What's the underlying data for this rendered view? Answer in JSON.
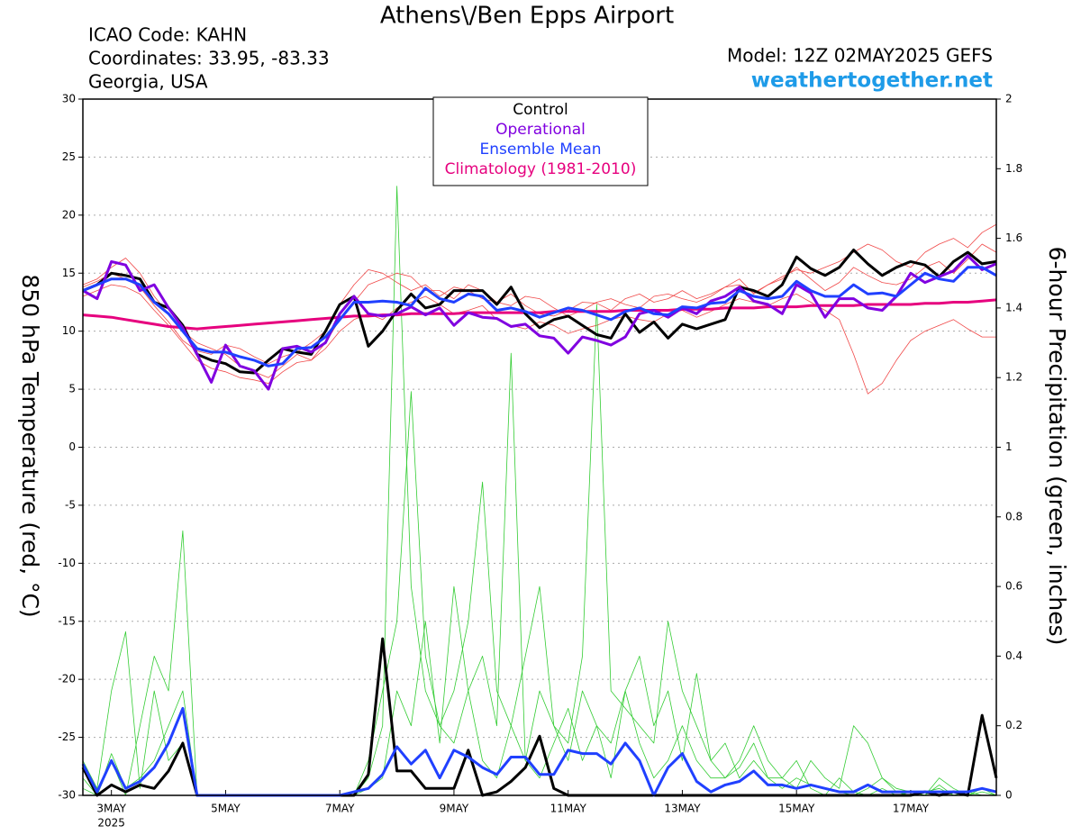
{
  "chart_data": {
    "type": "line",
    "title": "Athens\\/Ben Epps Airport",
    "info": [
      "ICAO Code: KAHN",
      "Coordinates: 33.95, -83.33",
      "Georgia, USA"
    ],
    "model": "Model: 12Z 02MAY2025 GEFS",
    "site": "weathertogether.net",
    "y_label": "850 hPa Temperature (red, °C)",
    "y2_label": "6-hour Precipitation (green, inches)",
    "x_year_label": "2025",
    "xlim": [
      2.5,
      18.5
    ],
    "xticks": [
      {
        "value": 3,
        "label": "3MAY"
      },
      {
        "value": 5,
        "label": "5MAY"
      },
      {
        "value": 7,
        "label": "7MAY"
      },
      {
        "value": 9,
        "label": "9MAY"
      },
      {
        "value": 11,
        "label": "11MAY"
      },
      {
        "value": 13,
        "label": "13MAY"
      },
      {
        "value": 15,
        "label": "15MAY"
      },
      {
        "value": 17,
        "label": "17MAY"
      }
    ],
    "ylim": [
      -30,
      30
    ],
    "yticks": [
      -30,
      -25,
      -20,
      -15,
      -10,
      -5,
      0,
      5,
      10,
      15,
      20,
      25,
      30
    ],
    "y2lim": [
      0,
      2
    ],
    "y2ticks": [
      0,
      0.2,
      0.4,
      0.6,
      0.8,
      1,
      1.2,
      1.4,
      1.6,
      1.8,
      2
    ],
    "grid": true,
    "x": [
      2.5,
      2.75,
      3,
      3.25,
      3.5,
      3.75,
      4,
      4.25,
      4.5,
      4.75,
      5,
      5.25,
      5.5,
      5.75,
      6,
      6.25,
      6.5,
      6.75,
      7,
      7.25,
      7.5,
      7.75,
      8,
      8.25,
      8.5,
      8.75,
      9,
      9.25,
      9.5,
      9.75,
      10,
      10.25,
      10.5,
      10.75,
      11,
      11.25,
      11.5,
      11.75,
      12,
      12.25,
      12.5,
      12.75,
      13,
      13.25,
      13.5,
      13.75,
      14,
      14.25,
      14.5,
      14.75,
      15,
      15.25,
      15.5,
      15.75,
      16,
      16.25,
      16.5,
      16.75,
      17,
      17.25,
      17.5,
      17.75,
      18,
      18.25,
      18.5
    ],
    "series": [
      {
        "color": "#f04848",
        "width": 0.8,
        "values": [
          14,
          14.5,
          15.5,
          16.3,
          15,
          13,
          11.5,
          10,
          9,
          8.5,
          8,
          7,
          6.5,
          6,
          7,
          8,
          7.5,
          9,
          11,
          12.5,
          14,
          14.5,
          15,
          14.7,
          13.5,
          13.5,
          12.8,
          14,
          13.5,
          12.5,
          12.2,
          13,
          12.8,
          12,
          11.3,
          11.8,
          12.5,
          12.8,
          12.3,
          12,
          13,
          13.2,
          12.8,
          12.5,
          13,
          13.8,
          14,
          13.3,
          14,
          14.7,
          15.3,
          15,
          15.5,
          16,
          16.8,
          17.5,
          17,
          16,
          15.5,
          16.8,
          17.5,
          18,
          17.2,
          18.5,
          19.2
        ]
      },
      {
        "color": "#f04848",
        "width": 0.8,
        "values": [
          13,
          13.5,
          14,
          13.8,
          13.2,
          11.8,
          10.5,
          9,
          7.5,
          6.8,
          6.5,
          6,
          5.8,
          5.5,
          6.5,
          7.3,
          7.5,
          8.5,
          10,
          11,
          11.5,
          11,
          12,
          12.5,
          13,
          12.3,
          11.5,
          11.8,
          12.2,
          11,
          10.5,
          10.2,
          10.8,
          10.5,
          9.8,
          10.2,
          10.5,
          11,
          11.3,
          11,
          10.8,
          11.5,
          11.8,
          11.2,
          11.7,
          12.3,
          12.8,
          12.5,
          12.2,
          12.8,
          13.2,
          12.5,
          11.8,
          11,
          8,
          4.6,
          5.5,
          7.5,
          9.2,
          10,
          10.5,
          11,
          10.2,
          9.5,
          9.5
        ]
      },
      {
        "color": "#f04848",
        "width": 0.8,
        "values": [
          13.8,
          14.3,
          15,
          14.5,
          13.8,
          12.2,
          10.8,
          9.2,
          8.3,
          8,
          8.8,
          8.5,
          7.8,
          7.2,
          7.8,
          8.2,
          9,
          10,
          12.3,
          14,
          15.3,
          15,
          14.2,
          13.5,
          14,
          13,
          13.8,
          13.5,
          12.8,
          12.5,
          13.2,
          12.2,
          11.5,
          11.3,
          11.8,
          12.5,
          12.4,
          11.8,
          12.8,
          13.2,
          12.5,
          12.8,
          13.5,
          12.8,
          13.2,
          13.8,
          14.5,
          13.2,
          14,
          14.5,
          15.5,
          14.5,
          13.5,
          14.2,
          15.5,
          14.8,
          14.2,
          14,
          14.5,
          15.5,
          16,
          15,
          16.2,
          17.5,
          16.8
        ]
      },
      {
        "color": "#33cc33",
        "width": 0.8,
        "axis": "y2",
        "values": [
          0.05,
          0,
          0.12,
          0.02,
          0.05,
          0.1,
          0.2,
          0.3,
          0,
          0,
          0,
          0,
          0,
          0,
          0,
          0,
          0,
          0,
          0,
          0,
          0.05,
          0.2,
          1.75,
          0.6,
          0.3,
          0.2,
          0.15,
          0.3,
          0.1,
          0.05,
          0.2,
          0.1,
          0.05,
          0.15,
          0.25,
          0.1,
          0.2,
          0.05,
          0.3,
          0.15,
          0.05,
          0.1,
          0.2,
          0.1,
          0.05,
          0.05,
          0.08,
          0.15,
          0.05,
          0.02,
          0.05,
          0.03,
          0.02,
          0.01,
          0,
          0.02,
          0.05,
          0.01,
          0,
          0.01,
          0.02,
          0,
          0.01,
          0,
          0
        ]
      },
      {
        "color": "#33cc33",
        "width": 0.8,
        "axis": "y2",
        "values": [
          0.1,
          0.02,
          0.3,
          0.47,
          0.02,
          0.3,
          0.1,
          0.15,
          0,
          0,
          0,
          0,
          0,
          0,
          0,
          0,
          0,
          0,
          0,
          0,
          0.02,
          0.05,
          0.3,
          0.2,
          0.5,
          0.15,
          0.6,
          0.3,
          0.4,
          0.2,
          1.27,
          0.1,
          0.3,
          0.2,
          0.15,
          0.4,
          1.41,
          0.3,
          0.25,
          0.2,
          0.15,
          0.5,
          0.3,
          0.2,
          0.1,
          0.15,
          0.05,
          0.1,
          0.05,
          0.05,
          0.1,
          0.02,
          0,
          0.05,
          0.01,
          0,
          0.02,
          0,
          0.01,
          0,
          0.03,
          0,
          0,
          0.02,
          0
        ]
      },
      {
        "color": "#33cc33",
        "width": 0.8,
        "axis": "y2",
        "values": [
          0.02,
          0,
          0.1,
          0,
          0.2,
          0.4,
          0.3,
          0.76,
          0,
          0,
          0,
          0,
          0,
          0,
          0,
          0,
          0,
          0,
          0,
          0,
          0.1,
          0.3,
          0.5,
          1.16,
          0.4,
          0.2,
          0.3,
          0.5,
          0.9,
          0.3,
          0.2,
          0.4,
          0.6,
          0.2,
          0.1,
          0.3,
          0.2,
          0.15,
          0.3,
          0.4,
          0.2,
          0.3,
          0.1,
          0.35,
          0.1,
          0.05,
          0.1,
          0.2,
          0.1,
          0.05,
          0.02,
          0.1,
          0.05,
          0.02,
          0.2,
          0.15,
          0.05,
          0.02,
          0.01,
          0,
          0.05,
          0.02,
          0,
          0.01,
          0
        ]
      },
      {
        "name": "Climatology (1981-2010)",
        "color": "#e6007e",
        "width": 3,
        "values": [
          11.4,
          11.3,
          11.2,
          11,
          10.8,
          10.6,
          10.4,
          10.3,
          10.2,
          10.3,
          10.4,
          10.5,
          10.6,
          10.7,
          10.8,
          10.9,
          11,
          11.1,
          11.2,
          11.3,
          11.3,
          11.4,
          11.4,
          11.5,
          11.5,
          11.5,
          11.5,
          11.6,
          11.6,
          11.6,
          11.6,
          11.6,
          11.6,
          11.7,
          11.7,
          11.7,
          11.7,
          11.7,
          11.8,
          11.8,
          11.8,
          11.8,
          11.9,
          11.9,
          11.9,
          12,
          12,
          12,
          12.1,
          12.1,
          12.1,
          12.2,
          12.2,
          12.2,
          12.2,
          12.3,
          12.3,
          12.3,
          12.3,
          12.4,
          12.4,
          12.5,
          12.5,
          12.6,
          12.7
        ]
      },
      {
        "color": "#000000",
        "width": 3,
        "axis": "y2",
        "values": [
          0.08,
          0,
          0.03,
          0.01,
          0.03,
          0.02,
          0.07,
          0.15,
          0,
          0,
          0,
          0,
          0,
          0,
          0,
          0,
          0,
          0,
          0,
          0,
          0.06,
          0.45,
          0.07,
          0.07,
          0.02,
          0.02,
          0.02,
          0.13,
          0,
          0.01,
          0.04,
          0.08,
          0.17,
          0.02,
          0,
          0,
          0,
          0,
          0,
          0,
          0,
          0,
          0,
          0,
          0,
          0,
          0,
          0,
          0,
          0,
          0,
          0,
          0,
          0,
          0,
          0,
          0,
          0,
          0,
          0.01,
          0,
          0.01,
          0,
          0.23,
          0.05
        ]
      },
      {
        "color": "#2040ff",
        "width": 3,
        "axis": "y2",
        "values": [
          0.09,
          0.01,
          0.1,
          0.02,
          0.04,
          0.08,
          0.15,
          0.25,
          0,
          0,
          0,
          0,
          0,
          0,
          0,
          0,
          0,
          0,
          0,
          0.01,
          0.02,
          0.06,
          0.14,
          0.09,
          0.13,
          0.05,
          0.13,
          0.11,
          0.08,
          0.06,
          0.11,
          0.11,
          0.06,
          0.06,
          0.13,
          0.12,
          0.12,
          0.09,
          0.15,
          0.1,
          0,
          0.08,
          0.12,
          0.04,
          0.01,
          0.03,
          0.04,
          0.07,
          0.03,
          0.03,
          0.02,
          0.03,
          0.02,
          0.01,
          0.01,
          0.03,
          0.01,
          0.01,
          0.01,
          0.01,
          0.01,
          0.01,
          0.01,
          0.02,
          0.01
        ]
      },
      {
        "name": "Control",
        "color": "#000000",
        "width": 3,
        "values": [
          13.5,
          14,
          15,
          14.8,
          14.5,
          12.5,
          12,
          10.5,
          8,
          7.5,
          7.2,
          6.5,
          6.4,
          7.5,
          8.5,
          8.2,
          8,
          10,
          12.3,
          13,
          8.7,
          10,
          11.8,
          13.2,
          12,
          12.3,
          13.5,
          13.5,
          13.5,
          12.3,
          13.8,
          11.5,
          10.3,
          11,
          11.3,
          10.5,
          9.7,
          9.4,
          11.5,
          9.9,
          10.8,
          9.4,
          10.6,
          10.2,
          10.6,
          11,
          13.8,
          13.5,
          13,
          14,
          16.4,
          15.4,
          14.8,
          15.5,
          17,
          15.8,
          14.8,
          15.5,
          16,
          15.7,
          14.7,
          16,
          16.8,
          15.8,
          16
        ]
      },
      {
        "name": "Operational",
        "color": "#8000e0",
        "width": 3,
        "values": [
          13.5,
          12.8,
          16,
          15.7,
          13.5,
          14,
          12,
          10.3,
          8,
          5.6,
          8.8,
          7,
          6.6,
          5,
          8.5,
          8.7,
          8.2,
          9,
          11.5,
          13,
          11.5,
          11.3,
          11.5,
          12.1,
          11.4,
          12,
          10.5,
          11.6,
          11.2,
          11.1,
          10.4,
          10.6,
          9.6,
          9.4,
          8.1,
          9.5,
          9.2,
          8.8,
          9.5,
          11.5,
          11.8,
          11.2,
          12,
          11.5,
          12.6,
          13,
          13.8,
          12.6,
          12.3,
          11.5,
          14,
          13.3,
          11.2,
          12.8,
          12.8,
          12,
          11.8,
          13,
          15,
          14.2,
          14.7,
          15.2,
          16.5,
          15.3,
          15.8
        ]
      },
      {
        "name": "Ensemble Mean",
        "color": "#2040ff",
        "width": 3,
        "values": [
          13.5,
          14,
          14.5,
          14.5,
          14,
          12.5,
          11.5,
          10,
          8.5,
          8.2,
          8.2,
          7.8,
          7.5,
          7,
          7.2,
          8.5,
          8.6,
          9.5,
          11,
          12.5,
          12.5,
          12.6,
          12.5,
          12.2,
          13.7,
          12.8,
          12.5,
          13.2,
          13,
          11.8,
          12,
          11.7,
          11.2,
          11.6,
          12,
          11.8,
          11.4,
          11,
          11.7,
          12,
          11.5,
          11.4,
          12.1,
          12,
          12.4,
          12.5,
          13.5,
          13,
          12.8,
          13,
          14.3,
          13.5,
          13,
          13,
          14,
          13.2,
          13.3,
          13,
          14,
          15,
          14.5,
          14.3,
          15.5,
          15.5,
          14.8
        ]
      }
    ]
  }
}
